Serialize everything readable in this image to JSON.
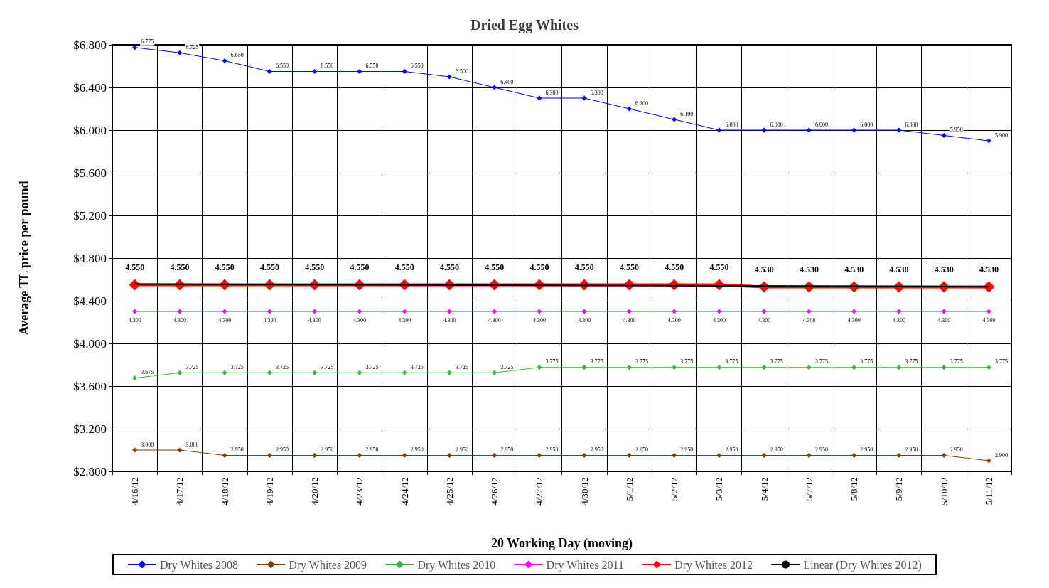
{
  "chart_data": {
    "type": "line",
    "title": "Dried Egg Whites",
    "xlabel": "20 Working Day (moving)",
    "ylabel": "Average TL price per pound",
    "categories": [
      "4/16/12",
      "4/17/12",
      "4/18/12",
      "4/19/12",
      "4/20/12",
      "4/23/12",
      "4/24/12",
      "4/25/12",
      "4/26/12",
      "4/27/12",
      "4/30/12",
      "5/1/12",
      "5/2/12",
      "5/3/12",
      "5/4/12",
      "5/7/12",
      "5/8/12",
      "5/9/12",
      "5/10/12",
      "5/11/12"
    ],
    "series": [
      {
        "name": "Dry Whites 2008",
        "color": "#0000ff",
        "values": [
          6.775,
          6.725,
          6.65,
          6.55,
          6.55,
          6.55,
          6.55,
          6.5,
          6.4,
          6.3,
          6.3,
          6.2,
          6.1,
          6.0,
          6.0,
          6.0,
          6.0,
          6.0,
          5.95,
          5.9
        ],
        "value_labels": [
          "6.775",
          "6.725",
          "6.650",
          "6.550",
          "6.550",
          "6.550",
          "6.550",
          "6.500",
          "6.400",
          "6.300",
          "6.300",
          "6.200",
          "6.100",
          "6.000",
          "6.000",
          "6.000",
          "6.000",
          "6.000",
          "5.950",
          "5.900"
        ]
      },
      {
        "name": "Dry Whites 2009",
        "color": "#7b3f00",
        "values": [
          3.0,
          3.0,
          2.95,
          2.95,
          2.95,
          2.95,
          2.95,
          2.95,
          2.95,
          2.95,
          2.95,
          2.95,
          2.95,
          2.95,
          2.95,
          2.95,
          2.95,
          2.95,
          2.95,
          2.9
        ],
        "value_labels": [
          "3.000",
          "3.000",
          "2.950",
          "2.950",
          "2.950",
          "2.950",
          "2.950",
          "2.950",
          "2.950",
          "2.950",
          "2.950",
          "2.950",
          "2.950",
          "2.950",
          "2.950",
          "2.950",
          "2.950",
          "2.950",
          "2.950",
          "2.900"
        ]
      },
      {
        "name": "Dry Whites 2010",
        "color": "#3cb043",
        "values": [
          3.675,
          3.725,
          3.725,
          3.725,
          3.725,
          3.725,
          3.725,
          3.725,
          3.725,
          3.775,
          3.775,
          3.775,
          3.775,
          3.775,
          3.775,
          3.775,
          3.775,
          3.775,
          3.775,
          3.775
        ],
        "value_labels": [
          "3.675",
          "3.725",
          "3.725",
          "3.725",
          "3.725",
          "3.725",
          "3.725",
          "3.725",
          "3.725",
          "3.775",
          "3.775",
          "3.775",
          "3.775",
          "3.775",
          "3.775",
          "3.775",
          "3.775",
          "3.775",
          "3.775",
          "3.775"
        ]
      },
      {
        "name": "Dry Whites 2011",
        "color": "#ff00ff",
        "values": [
          4.3,
          4.3,
          4.3,
          4.3,
          4.3,
          4.3,
          4.3,
          4.3,
          4.3,
          4.3,
          4.3,
          4.3,
          4.3,
          4.3,
          4.3,
          4.3,
          4.3,
          4.3,
          4.3,
          4.3
        ],
        "value_labels": [
          "4.300",
          "4.300",
          "4.300",
          "4.300",
          "4.300",
          "4.300",
          "4.300",
          "4.300",
          "4.300",
          "4.300",
          "4.300",
          "4.300",
          "4.300",
          "4.300",
          "4.300",
          "4.300",
          "4.300",
          "4.300",
          "4.300",
          "4.300"
        ]
      },
      {
        "name": "Dry Whites 2012",
        "color": "#ff0000",
        "values": [
          4.55,
          4.55,
          4.55,
          4.55,
          4.55,
          4.55,
          4.55,
          4.55,
          4.55,
          4.55,
          4.55,
          4.55,
          4.55,
          4.55,
          4.53,
          4.53,
          4.53,
          4.53,
          4.53,
          4.53
        ],
        "value_labels": [
          "4.550",
          "4.550",
          "4.550",
          "4.550",
          "4.550",
          "4.550",
          "4.550",
          "4.550",
          "4.550",
          "4.550",
          "4.550",
          "4.550",
          "4.550",
          "4.550",
          "4.530",
          "4.530",
          "4.530",
          "4.530",
          "4.530",
          "4.530"
        ]
      },
      {
        "name": "Linear (Dry Whites 2012)",
        "color": "#000000",
        "marker": "none",
        "x": [
          "4/16/12",
          "5/11/12"
        ],
        "values": [
          4.556,
          4.532
        ]
      }
    ],
    "ylim": [
      2.8,
      6.8
    ],
    "yticks": [
      {
        "value": 2.8,
        "label": "$2.800"
      },
      {
        "value": 3.2,
        "label": "$3.200"
      },
      {
        "value": 3.6,
        "label": "$3.600"
      },
      {
        "value": 4.0,
        "label": "$4.000"
      },
      {
        "value": 4.4,
        "label": "$4.400"
      },
      {
        "value": 4.8,
        "label": "$4.800"
      },
      {
        "value": 5.2,
        "label": "$5.200"
      },
      {
        "value": 5.6,
        "label": "$5.600"
      },
      {
        "value": 6.0,
        "label": "$6.000"
      },
      {
        "value": 6.4,
        "label": "$6.400"
      },
      {
        "value": 6.8,
        "label": "$6.800"
      }
    ],
    "grid": true,
    "legend": "bottom",
    "marker": "diamond",
    "line_style": "solid"
  }
}
